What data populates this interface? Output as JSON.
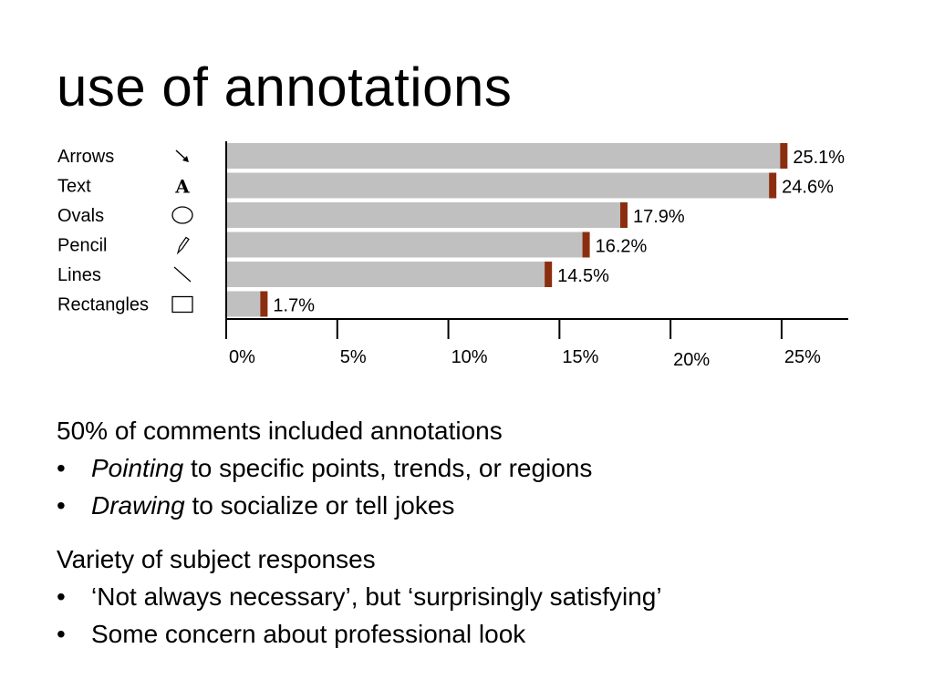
{
  "slide": {
    "title": "use of annotations",
    "group1_heading": "50% of comments included annotations",
    "group1_items": [
      {
        "em": "Pointing",
        "rest": " to specific points, trends, or regions"
      },
      {
        "em": "Drawing",
        "rest": " to socialize or tell jokes"
      }
    ],
    "group2_heading": "Variety of subject responses",
    "group2_items": [
      "‘Not always necessary’, but ‘surprisingly satisfying’",
      "Some concern about professional look"
    ],
    "bullet_char": "•"
  },
  "chart_data": {
    "type": "bar",
    "orientation": "horizontal",
    "categories": [
      "Arrows",
      "Text",
      "Ovals",
      "Pencil",
      "Lines",
      "Rectangles"
    ],
    "icons": [
      "arrow-icon",
      "text-icon",
      "oval-icon",
      "pencil-icon",
      "line-icon",
      "rectangle-icon"
    ],
    "values": [
      25.1,
      24.6,
      17.9,
      16.2,
      14.5,
      1.7
    ],
    "value_labels": [
      "25.1%",
      "24.6%",
      "17.9%",
      "16.2%",
      "14.5%",
      "1.7%"
    ],
    "xticks": [
      0,
      5,
      10,
      15,
      20,
      25
    ],
    "xtick_labels": [
      "0%",
      "5%",
      "10%",
      "15%",
      "20%",
      "25%"
    ],
    "xlim": [
      0,
      28
    ],
    "bar_color": "#c0c0c0",
    "marker_color": "#8b2e0f",
    "grid": false
  }
}
